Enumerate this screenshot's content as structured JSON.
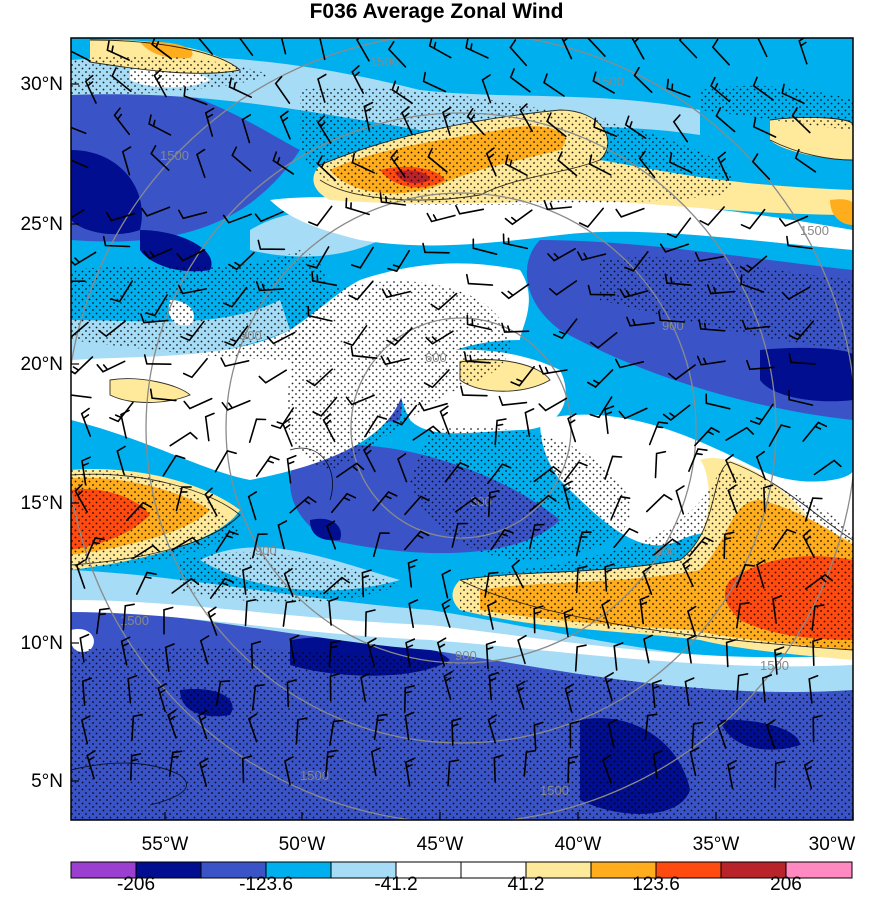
{
  "title": "F036 Average Zonal Wind",
  "lat_labels": [
    "30°N",
    "25°N",
    "20°N",
    "15°N",
    "10°N",
    "5°N"
  ],
  "lon_labels": [
    "55°W",
    "50°W",
    "45°W",
    "40°W",
    "35°W",
    "30°W"
  ],
  "colorbar": {
    "colors": [
      "#9a3fd0",
      "#000e8f",
      "#3a54c8",
      "#00b0ee",
      "#a6dcf5",
      "#ffffff",
      "#ffffff",
      "#ffe99a",
      "#ffad1d",
      "#ff4a10",
      "#b8242a",
      "#ff89c0"
    ],
    "labels": [
      "-206",
      "-123.6",
      "-41.2",
      "41.2",
      "123.6",
      "206"
    ]
  },
  "range_ring_labels": [
    "300",
    "600",
    "900",
    "1500"
  ]
}
